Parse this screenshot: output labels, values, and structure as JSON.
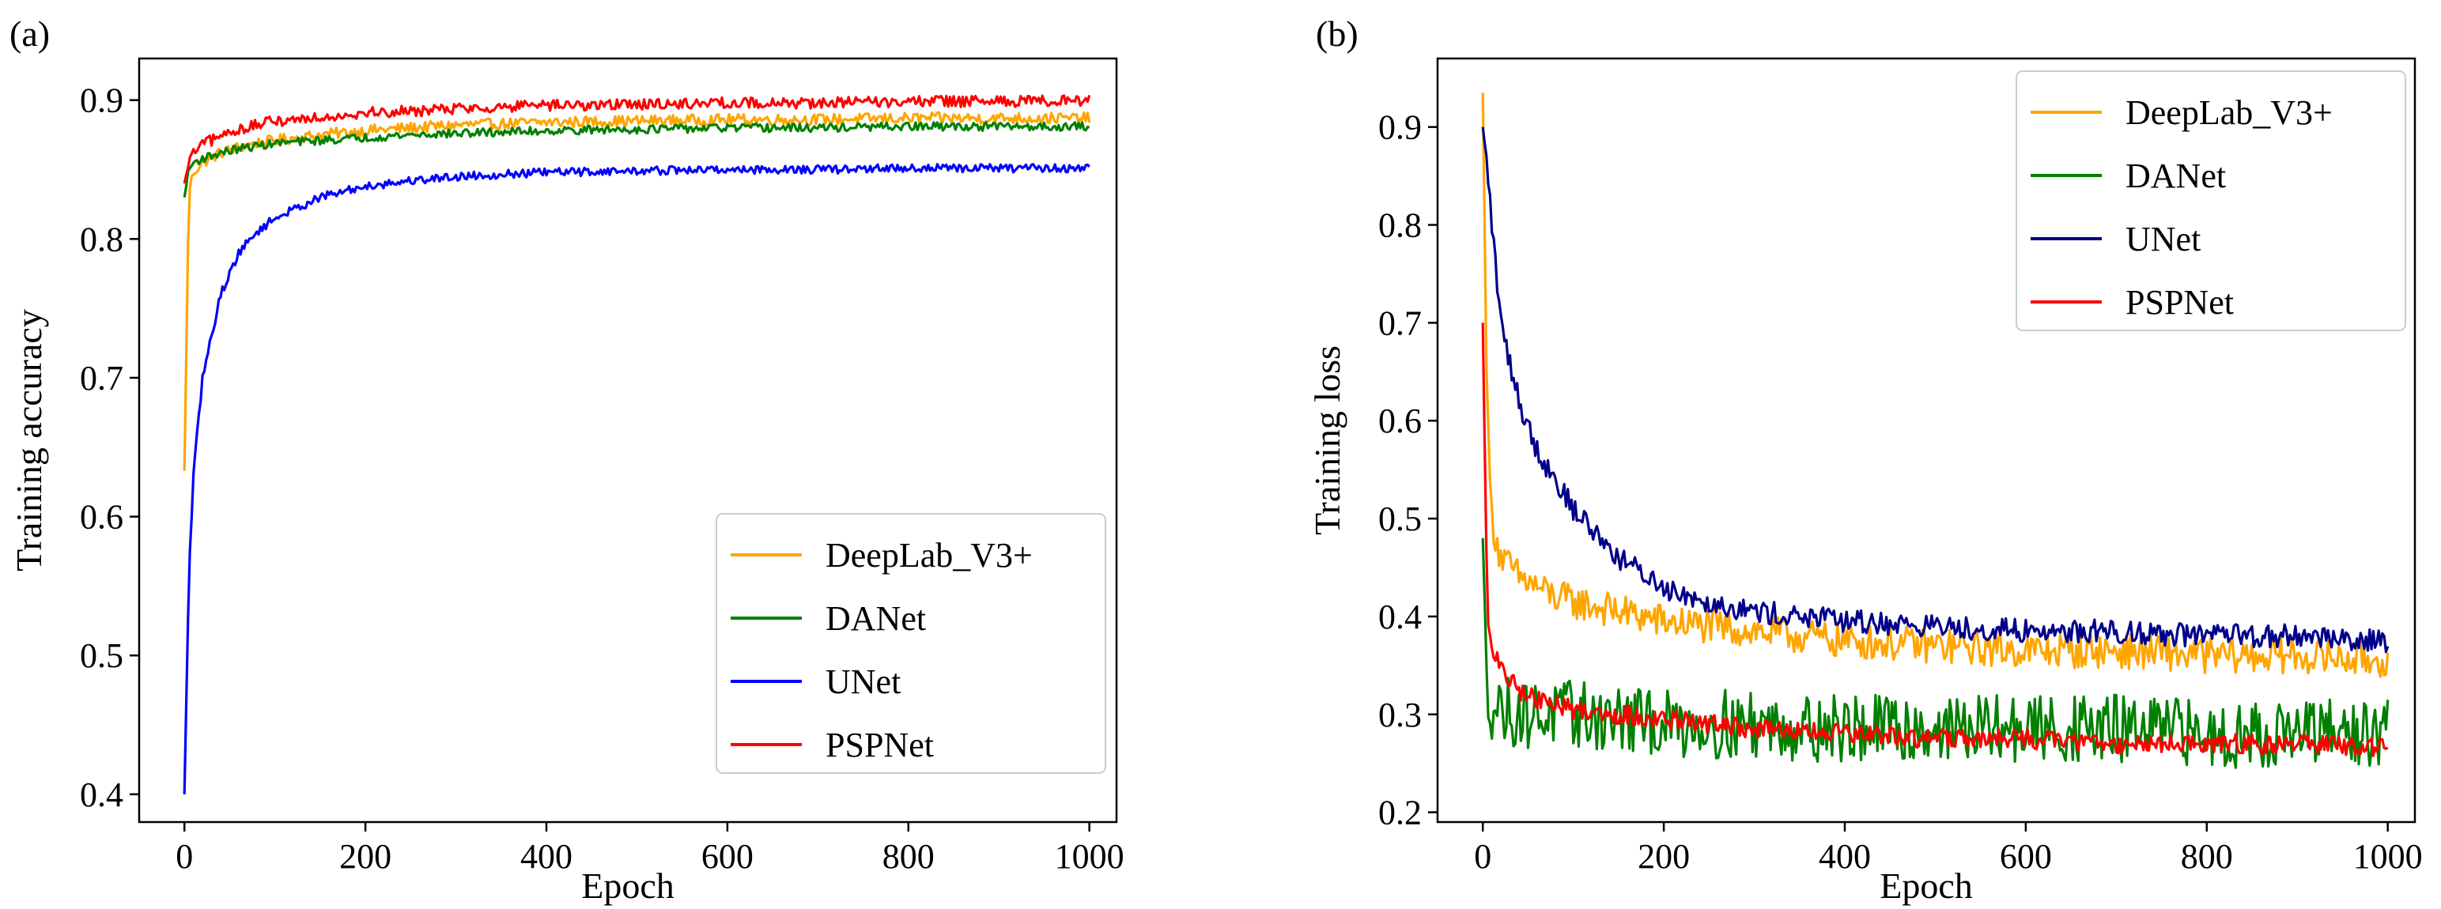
{
  "chart_data": [
    {
      "type": "line",
      "panel_label": "(a)",
      "title": "",
      "xlabel": "Epoch",
      "ylabel": "Training accuracy",
      "xlim": [
        -50,
        1030
      ],
      "ylim": [
        0.38,
        0.93
      ],
      "xticks": [
        0,
        200,
        400,
        600,
        800,
        1000
      ],
      "xtick_labels": [
        "0",
        "200",
        "400",
        "600",
        "800",
        "1000"
      ],
      "yticks": [
        0.4,
        0.5,
        0.6,
        0.7,
        0.8,
        0.9
      ],
      "ytick_labels": [
        "0.4",
        "0.5",
        "0.6",
        "0.7",
        "0.8",
        "0.9"
      ],
      "legend_position": "lower-right",
      "grid": false,
      "x": [
        0,
        5,
        10,
        20,
        40,
        60,
        80,
        100,
        150,
        200,
        250,
        300,
        400,
        500,
        600,
        700,
        800,
        900,
        1000
      ],
      "series": [
        {
          "name": "DeepLab_V3+",
          "color": "#FFA500",
          "noise": 0.004,
          "values": [
            0.633,
            0.835,
            0.848,
            0.855,
            0.862,
            0.866,
            0.869,
            0.871,
            0.875,
            0.878,
            0.88,
            0.882,
            0.884,
            0.885,
            0.886,
            0.886,
            0.887,
            0.887,
            0.887
          ]
        },
        {
          "name": "DANet",
          "color": "#008000",
          "noise": 0.003,
          "values": [
            0.83,
            0.85,
            0.855,
            0.858,
            0.862,
            0.865,
            0.867,
            0.869,
            0.871,
            0.873,
            0.875,
            0.876,
            0.878,
            0.879,
            0.88,
            0.88,
            0.881,
            0.881,
            0.881
          ]
        },
        {
          "name": "UNet",
          "color": "#0000FF",
          "noise": 0.003,
          "values": [
            0.4,
            0.56,
            0.63,
            0.7,
            0.76,
            0.79,
            0.805,
            0.815,
            0.83,
            0.838,
            0.842,
            0.845,
            0.848,
            0.849,
            0.85,
            0.85,
            0.851,
            0.851,
            0.851
          ]
        },
        {
          "name": "PSPNet",
          "color": "#FF0000",
          "noise": 0.004,
          "values": [
            0.84,
            0.855,
            0.862,
            0.868,
            0.874,
            0.879,
            0.882,
            0.885,
            0.888,
            0.891,
            0.892,
            0.894,
            0.896,
            0.897,
            0.898,
            0.898,
            0.899,
            0.899,
            0.9
          ]
        }
      ]
    },
    {
      "type": "line",
      "panel_label": "(b)",
      "title": "",
      "xlabel": "Epoch",
      "ylabel": "Training loss",
      "xlim": [
        -50,
        1030
      ],
      "ylim": [
        0.19,
        0.97
      ],
      "xticks": [
        0,
        200,
        400,
        600,
        800,
        1000
      ],
      "xtick_labels": [
        "0",
        "200",
        "400",
        "600",
        "800",
        "1000"
      ],
      "yticks": [
        0.2,
        0.3,
        0.4,
        0.5,
        0.6,
        0.7,
        0.8,
        0.9
      ],
      "ytick_labels": [
        "0.2",
        "0.3",
        "0.4",
        "0.5",
        "0.6",
        "0.7",
        "0.8",
        "0.9"
      ],
      "legend_position": "upper-right",
      "grid": false,
      "x": [
        0,
        5,
        10,
        20,
        40,
        60,
        80,
        100,
        150,
        200,
        250,
        300,
        400,
        500,
        600,
        700,
        800,
        900,
        1000
      ],
      "series": [
        {
          "name": "DeepLab_V3+",
          "color": "#FFA500",
          "noise": 0.018,
          "values": [
            0.935,
            0.6,
            0.5,
            0.46,
            0.44,
            0.43,
            0.42,
            0.415,
            0.405,
            0.395,
            0.39,
            0.385,
            0.375,
            0.37,
            0.365,
            0.365,
            0.36,
            0.36,
            0.355
          ]
        },
        {
          "name": "DANet",
          "color": "#008000",
          "noise": 0.035,
          "values": [
            0.48,
            0.33,
            0.31,
            0.305,
            0.3,
            0.3,
            0.3,
            0.3,
            0.295,
            0.29,
            0.29,
            0.29,
            0.285,
            0.285,
            0.285,
            0.285,
            0.28,
            0.28,
            0.28
          ]
        },
        {
          "name": "UNet",
          "color": "#00008B",
          "noise": 0.012,
          "values": [
            0.9,
            0.86,
            0.8,
            0.7,
            0.62,
            0.57,
            0.54,
            0.51,
            0.46,
            0.43,
            0.415,
            0.405,
            0.395,
            0.39,
            0.385,
            0.385,
            0.38,
            0.38,
            0.375
          ]
        },
        {
          "name": "PSPNet",
          "color": "#FF0000",
          "noise": 0.01,
          "values": [
            0.7,
            0.4,
            0.37,
            0.345,
            0.325,
            0.315,
            0.31,
            0.305,
            0.3,
            0.295,
            0.29,
            0.285,
            0.28,
            0.275,
            0.275,
            0.27,
            0.27,
            0.27,
            0.265
          ]
        }
      ]
    }
  ]
}
